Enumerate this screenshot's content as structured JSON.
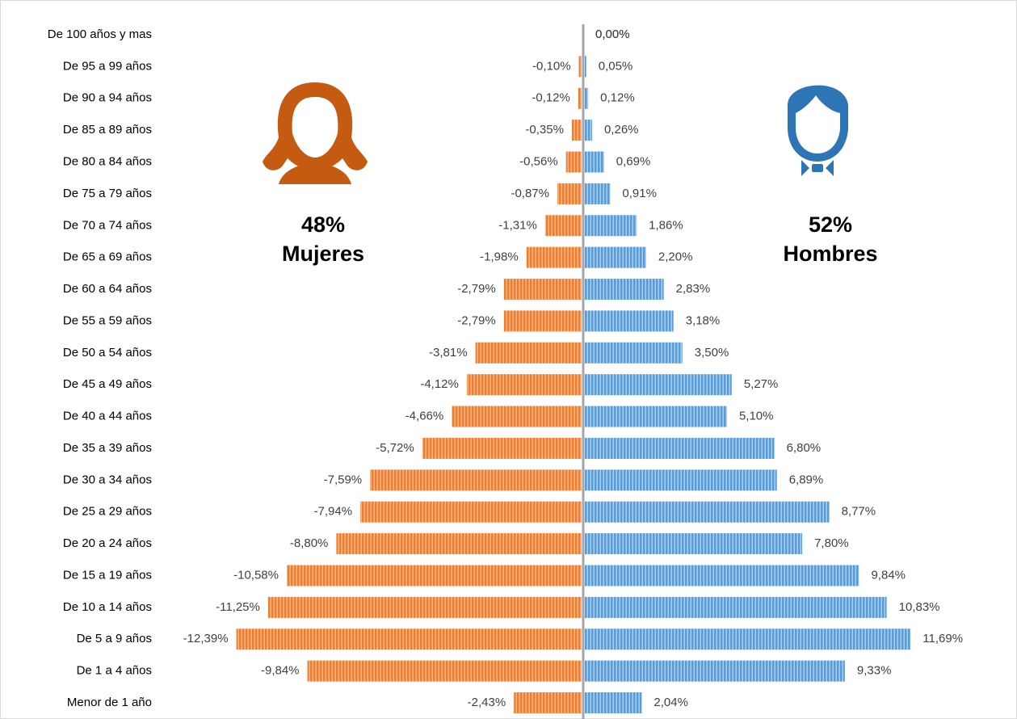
{
  "chart_data": {
    "type": "pyramid",
    "categories": [
      "De 100 años y mas",
      "De 95 a 99 años",
      "De 90 a 94 años",
      "De 85 a 89 años",
      "De 80 a 84 años",
      "De 75 a 79 años",
      "De 70 a 74 años",
      "De 65 a 69 años",
      "De 60 a 64 años",
      "De 55 a 59 años",
      "De 50 a 54 años",
      "De 45 a 49 años",
      "De 40 a 44 años",
      "De 35 a 39 años",
      "De 30 a 34 años",
      "De 25 a 29 años",
      "De 20 a 24 años",
      "De 15 a 19 años",
      "De 10 a 14 años",
      "De 5 a 9 años",
      "De 1 a 4 años",
      "Menor de 1 año"
    ],
    "series": [
      {
        "name": "Mujeres",
        "color": "#ed7d31",
        "values": [
          0,
          -0.1,
          -0.12,
          -0.35,
          -0.56,
          -0.87,
          -1.31,
          -1.98,
          -2.79,
          -2.79,
          -3.81,
          -4.12,
          -4.66,
          -5.72,
          -7.59,
          -7.94,
          -8.8,
          -10.58,
          -11.25,
          -12.39,
          -9.84,
          -2.43
        ],
        "value_labels": [
          "0,00%",
          "-0,10%",
          "-0,12%",
          "-0,35%",
          "-0,56%",
          "-0,87%",
          "-1,31%",
          "-1,98%",
          "-2,79%",
          "-2,79%",
          "-3,81%",
          "-4,12%",
          "-4,66%",
          "-5,72%",
          "-7,59%",
          "-7,94%",
          "-8,80%",
          "-10,58%",
          "-11,25%",
          "-12,39%",
          "-9,84%",
          "-2,43%"
        ]
      },
      {
        "name": "Hombres",
        "color": "#5b9bd5",
        "values": [
          0,
          0.05,
          0.12,
          0.26,
          0.69,
          0.91,
          1.86,
          2.2,
          2.83,
          3.18,
          3.5,
          5.27,
          5.1,
          6.8,
          6.89,
          8.77,
          7.8,
          9.84,
          10.83,
          11.69,
          9.33,
          2.04
        ],
        "value_labels": [
          "0,00%",
          "0,05%",
          "0,12%",
          "0,26%",
          "0,69%",
          "0,91%",
          "1,86%",
          "2,20%",
          "2,83%",
          "3,18%",
          "3,50%",
          "5,27%",
          "5,10%",
          "6,80%",
          "6,89%",
          "8,77%",
          "7,80%",
          "9,84%",
          "10,83%",
          "11,69%",
          "9,33%",
          "2,04%"
        ]
      }
    ],
    "annotations": [
      "48%",
      "52%"
    ]
  }
}
